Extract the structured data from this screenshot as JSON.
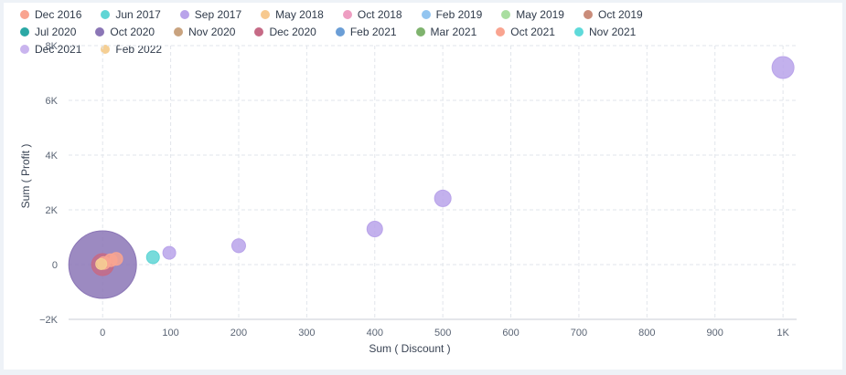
{
  "chart_data": {
    "type": "scatter",
    "xlabel": "Sum ( Discount )",
    "ylabel": "Sum ( Profit )",
    "xlim": [
      -50,
      1020
    ],
    "ylim": [
      -2000,
      8000
    ],
    "x_ticks": [
      0,
      100,
      200,
      300,
      400,
      500,
      600,
      700,
      800,
      900,
      1000
    ],
    "x_tick_labels": [
      "0",
      "100",
      "200",
      "300",
      "400",
      "500",
      "600",
      "700",
      "800",
      "900",
      "1K"
    ],
    "y_ticks": [
      -2000,
      0,
      2000,
      4000,
      6000,
      8000
    ],
    "y_tick_labels": [
      "−2K",
      "0",
      "2K",
      "4K",
      "6K",
      "8K"
    ],
    "grid": true,
    "legend_position": "top",
    "series": [
      {
        "name": "Dec 2016",
        "color": "#f9a490",
        "points": [
          {
            "x": 20,
            "y": 210,
            "r": 7
          },
          {
            "x": 12,
            "y": 160,
            "r": 7
          }
        ]
      },
      {
        "name": "Jun 2017",
        "color": "#5fd5d5",
        "points": [
          {
            "x": 74,
            "y": 270,
            "r": 7
          }
        ]
      },
      {
        "name": "Sep 2017",
        "color": "#b9a3ea",
        "points": [
          {
            "x": 1000,
            "y": 7200,
            "r": 12
          },
          {
            "x": 500,
            "y": 2420,
            "r": 9
          },
          {
            "x": 400,
            "y": 1300,
            "r": 8.5
          },
          {
            "x": 200,
            "y": 690,
            "r": 7.5
          },
          {
            "x": 98,
            "y": 430,
            "r": 7
          }
        ]
      },
      {
        "name": "May 2018",
        "color": "#f7c98f",
        "points": []
      },
      {
        "name": "Oct 2018",
        "color": "#ee9ec2",
        "points": []
      },
      {
        "name": "Feb 2019",
        "color": "#93c5f0",
        "points": []
      },
      {
        "name": "May 2019",
        "color": "#a9dea0",
        "points": []
      },
      {
        "name": "Oct 2019",
        "color": "#c98c7a",
        "points": []
      },
      {
        "name": "Jul 2020",
        "color": "#2ba8a5",
        "points": []
      },
      {
        "name": "Oct 2020",
        "color": "#8b76b6",
        "points": [
          {
            "x": 0,
            "y": 0,
            "r": 37
          }
        ]
      },
      {
        "name": "Nov 2020",
        "color": "#c9a37f",
        "points": []
      },
      {
        "name": "Dec 2020",
        "color": "#c66a86",
        "points": [
          {
            "x": 0,
            "y": 0,
            "r": 12
          }
        ]
      },
      {
        "name": "Feb 2021",
        "color": "#6b9ed6",
        "points": []
      },
      {
        "name": "Mar 2021",
        "color": "#7fb36e",
        "points": []
      },
      {
        "name": "Oct 2021",
        "color": "#f9a490",
        "points": [
          {
            "x": 2,
            "y": 60,
            "r": 7
          }
        ]
      },
      {
        "name": "Nov 2021",
        "color": "#5fdada",
        "points": []
      },
      {
        "name": "Dec 2021",
        "color": "#c9b4ee",
        "points": []
      },
      {
        "name": "Feb 2022",
        "color": "#f5cf94",
        "points": [
          {
            "x": -2,
            "y": 20,
            "r": 6
          }
        ]
      }
    ]
  }
}
